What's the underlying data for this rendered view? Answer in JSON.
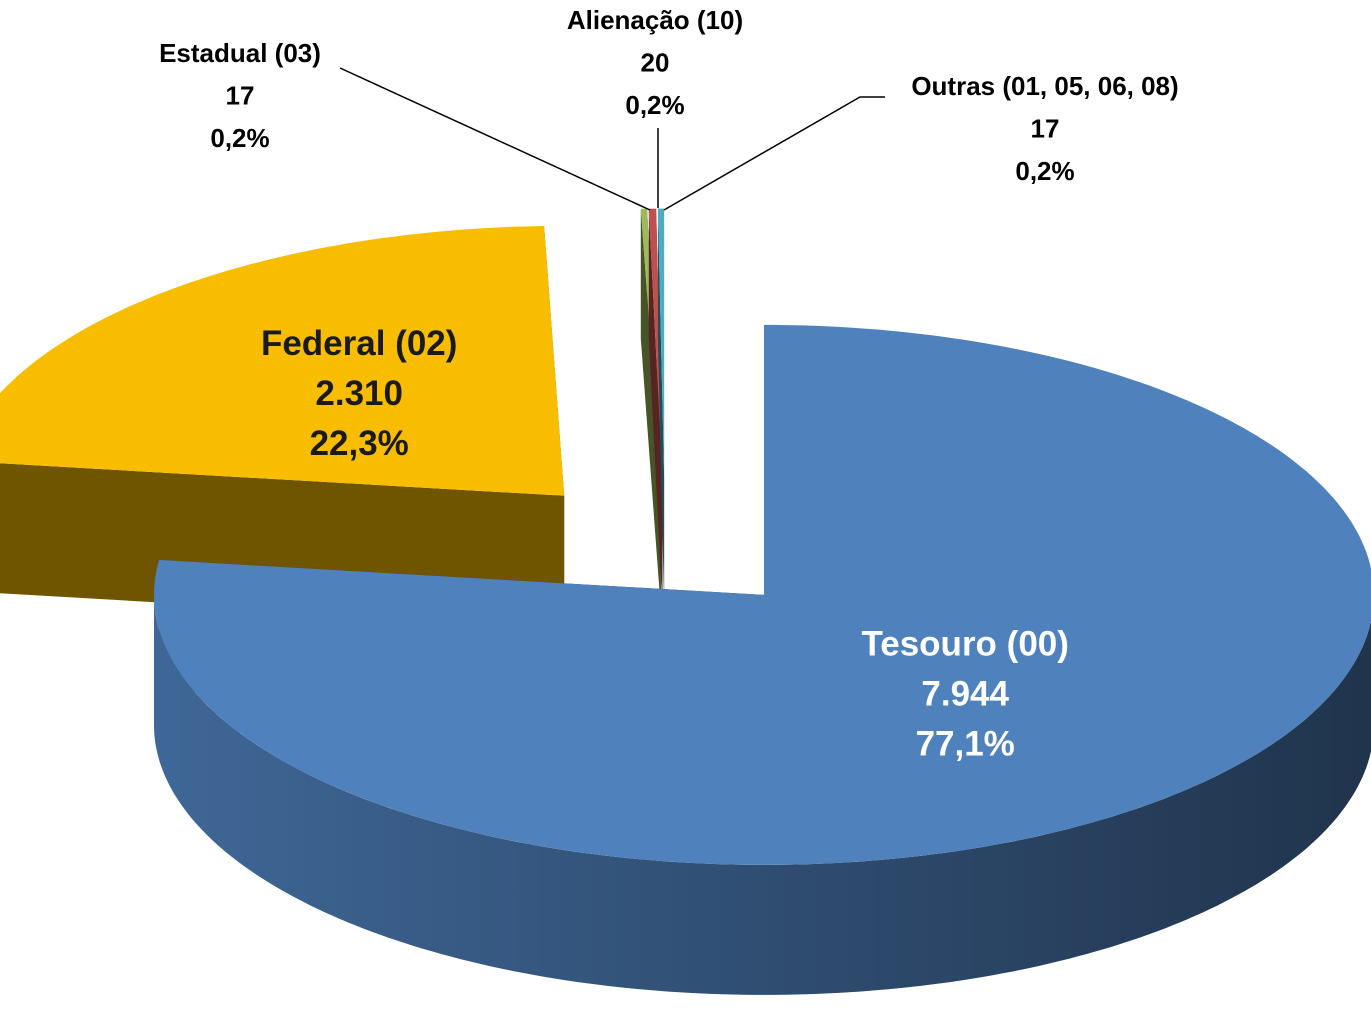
{
  "chart_data": {
    "type": "pie3d",
    "categories": [
      "Tesouro (00)",
      "Federal (02)",
      "Estadual (03)",
      "Alienação (10)",
      "Outras (01, 05, 06, 08)"
    ],
    "values": [
      7944,
      2310,
      17,
      20,
      17
    ],
    "value_labels": [
      "7.944",
      "2.310",
      "17",
      "20",
      "17"
    ],
    "percents": [
      77.1,
      22.3,
      0.2,
      0.2,
      0.2
    ],
    "percent_labels": [
      "77,1%",
      "22,3%",
      "0,2%",
      "0,2%",
      "0,2%"
    ],
    "colors": [
      "#4f81bd",
      "#f9bd00",
      "#9bbb59",
      "#c0504d",
      "#4bacc6"
    ]
  }
}
